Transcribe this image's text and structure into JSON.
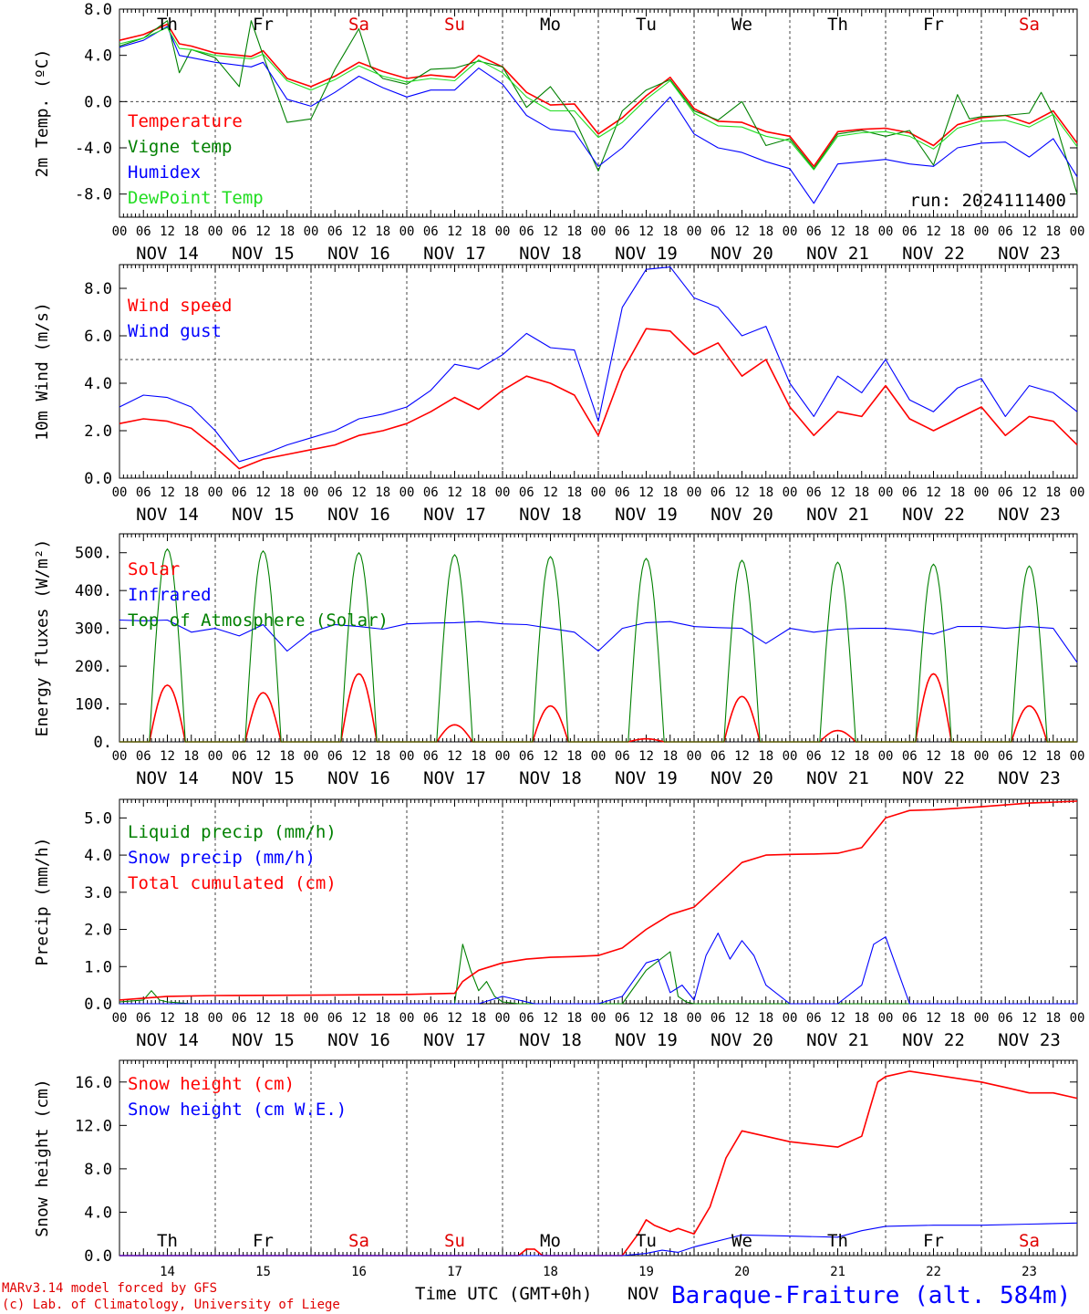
{
  "days": [
    "Th",
    "Fr",
    "Sa",
    "Su",
    "Mo",
    "Tu",
    "We",
    "Th",
    "Fr",
    "Sa"
  ],
  "day_colors": [
    "#000000",
    "#000000",
    "#e00000",
    "#e00000",
    "#000000",
    "#000000",
    "#000000",
    "#000000",
    "#000000",
    "#e00000"
  ],
  "dates": [
    "NOV 14",
    "NOV 15",
    "NOV 16",
    "NOV 17",
    "NOV 18",
    "NOV 19",
    "NOV 20",
    "NOV 21",
    "NOV 22",
    "NOV 23"
  ],
  "hour_labels": [
    "00",
    "06",
    "12",
    "18"
  ],
  "hour_end": "00",
  "bottom_day_numbers": [
    "14",
    "15",
    "16",
    "17",
    "18",
    "19",
    "20",
    "21",
    "22",
    "23"
  ],
  "bottom_month": "NOV",
  "time_label": "Time UTC (GMT+0h)",
  "station": "Baraque-Fraiture (alt. 584m)",
  "credits": [
    "MARv3.14 model forced by GFS",
    "(c) Lab. of Climatology, University of Liege"
  ],
  "run": "run: 2024111400",
  "colors": {
    "red": "#ff0000",
    "green": "#008000",
    "blue": "#0000ff",
    "lime": "#22dd22"
  },
  "chart_data": [
    {
      "type": "line",
      "ylabel": "2m Temp. (ºC)",
      "ylim": [
        -10.0,
        8.0
      ],
      "yticks": [
        8.0,
        4.0,
        0.0,
        -4.0,
        -8.0
      ],
      "ytick_labels": [
        "8.0",
        "4.0",
        "0.0",
        "-4.0",
        "-8.0"
      ],
      "zero_line": 0.0,
      "x_unit": "hours since NOV 14 00 UTC",
      "series": [
        {
          "name": "Temperature",
          "color": "#ff0000",
          "x": [
            0,
            6,
            12,
            15,
            18,
            24,
            33,
            36,
            42,
            48,
            54,
            60,
            66,
            72,
            78,
            84,
            90,
            96,
            102,
            108,
            114,
            120,
            126,
            132,
            138,
            144,
            150,
            156,
            162,
            168,
            174,
            180,
            186,
            192,
            198,
            204,
            210,
            216,
            222,
            228,
            234,
            240
          ],
          "y": [
            5.3,
            5.8,
            6.7,
            5.0,
            4.8,
            4.2,
            3.9,
            4.4,
            2.0,
            1.3,
            2.2,
            3.4,
            2.6,
            2.0,
            2.3,
            2.1,
            4.0,
            3.0,
            0.8,
            -0.3,
            -0.2,
            -2.8,
            -1.4,
            0.5,
            2.1,
            -0.6,
            -1.7,
            -1.8,
            -2.6,
            -3.0,
            -5.6,
            -2.6,
            -2.4,
            -2.3,
            -2.7,
            -3.8,
            -2.0,
            -1.4,
            -1.2,
            -1.9,
            -0.8,
            -3.6
          ]
        },
        {
          "name": "Vigne temp",
          "color": "#008000",
          "x": [
            0,
            6,
            12,
            15,
            18,
            24,
            30,
            33,
            36,
            42,
            48,
            54,
            60,
            63,
            66,
            72,
            78,
            84,
            90,
            96,
            102,
            108,
            114,
            120,
            126,
            132,
            138,
            144,
            150,
            156,
            162,
            168,
            174,
            180,
            186,
            192,
            198,
            204,
            210,
            213,
            216,
            222,
            228,
            231,
            234,
            240
          ],
          "y": [
            4.8,
            5.5,
            7.0,
            2.5,
            4.5,
            3.8,
            1.3,
            7.0,
            4.0,
            -1.8,
            -1.5,
            2.8,
            6.3,
            3.0,
            2.0,
            1.5,
            2.8,
            2.9,
            3.5,
            3.0,
            -0.5,
            1.3,
            -1.5,
            -6.0,
            -0.8,
            1.0,
            1.9,
            -0.8,
            -1.6,
            0.0,
            -3.8,
            -3.2,
            -5.8,
            -2.8,
            -2.5,
            -3.0,
            -2.5,
            -5.5,
            0.6,
            -1.5,
            -1.3,
            -1.2,
            -1.0,
            0.8,
            -1.2,
            -8.0
          ]
        },
        {
          "name": "Humidex",
          "color": "#0000ff",
          "x": [
            0,
            6,
            12,
            15,
            18,
            24,
            33,
            36,
            42,
            48,
            54,
            60,
            66,
            72,
            78,
            84,
            90,
            96,
            102,
            108,
            114,
            120,
            126,
            132,
            138,
            144,
            150,
            156,
            162,
            168,
            174,
            180,
            186,
            192,
            198,
            204,
            210,
            216,
            222,
            228,
            234,
            240
          ],
          "y": [
            4.7,
            5.3,
            6.5,
            4.0,
            3.8,
            3.4,
            3.0,
            3.4,
            0.2,
            -0.4,
            0.8,
            2.2,
            1.2,
            0.4,
            1.0,
            1.0,
            2.9,
            1.5,
            -1.2,
            -2.4,
            -2.6,
            -5.6,
            -4.0,
            -1.8,
            0.4,
            -2.8,
            -4.0,
            -4.4,
            -5.2,
            -5.8,
            -8.8,
            -5.4,
            -5.2,
            -5.0,
            -5.4,
            -5.6,
            -4.0,
            -3.6,
            -3.5,
            -4.8,
            -3.2,
            -6.5
          ]
        },
        {
          "name": "DewPoint Temp",
          "color": "#22dd22",
          "x": [
            0,
            6,
            12,
            15,
            18,
            24,
            33,
            36,
            42,
            48,
            54,
            60,
            66,
            72,
            78,
            84,
            90,
            96,
            102,
            108,
            114,
            120,
            126,
            132,
            138,
            144,
            150,
            156,
            162,
            168,
            174,
            180,
            186,
            192,
            198,
            204,
            210,
            216,
            222,
            228,
            234,
            240
          ],
          "y": [
            5.0,
            5.5,
            6.4,
            4.6,
            4.5,
            4.0,
            3.7,
            4.1,
            1.8,
            1.0,
            1.9,
            3.1,
            2.2,
            1.7,
            2.0,
            1.8,
            3.6,
            2.5,
            0.4,
            -0.8,
            -0.8,
            -3.1,
            -1.8,
            0.2,
            1.8,
            -1.0,
            -2.1,
            -2.2,
            -3.0,
            -3.4,
            -5.9,
            -3.0,
            -2.7,
            -2.6,
            -3.0,
            -4.1,
            -2.3,
            -1.7,
            -1.6,
            -2.2,
            -1.1,
            -3.9
          ]
        }
      ]
    },
    {
      "type": "line",
      "ylabel": "10m Wind (m/s)",
      "ylim": [
        0.0,
        9.0
      ],
      "yticks": [
        0.0,
        2.0,
        4.0,
        6.0,
        8.0
      ],
      "ytick_labels": [
        "0.0",
        "2.0",
        "4.0",
        "6.0",
        "8.0"
      ],
      "zero_line": 5.0,
      "x_unit": "hours since NOV 14 00 UTC",
      "series": [
        {
          "name": "Wind speed",
          "color": "#ff0000",
          "x": [
            0,
            6,
            12,
            18,
            24,
            30,
            36,
            42,
            48,
            54,
            60,
            66,
            72,
            78,
            84,
            90,
            96,
            102,
            108,
            114,
            120,
            126,
            132,
            138,
            144,
            150,
            156,
            162,
            168,
            174,
            180,
            186,
            192,
            198,
            204,
            210,
            216,
            222,
            228,
            234,
            240
          ],
          "y": [
            2.3,
            2.5,
            2.4,
            2.1,
            1.3,
            0.4,
            0.8,
            1.0,
            1.2,
            1.4,
            1.8,
            2.0,
            2.3,
            2.8,
            3.4,
            2.9,
            3.7,
            4.3,
            4.0,
            3.5,
            1.8,
            4.5,
            6.3,
            6.2,
            5.2,
            5.7,
            4.3,
            5.0,
            3.0,
            1.8,
            2.8,
            2.6,
            3.9,
            2.5,
            2.0,
            2.5,
            3.0,
            1.8,
            2.6,
            2.4,
            1.4
          ]
        },
        {
          "name": "Wind gust",
          "color": "#0000ff",
          "x": [
            0,
            6,
            12,
            18,
            24,
            30,
            36,
            42,
            48,
            54,
            60,
            66,
            72,
            78,
            84,
            90,
            96,
            102,
            108,
            114,
            120,
            126,
            132,
            138,
            144,
            150,
            156,
            162,
            168,
            174,
            180,
            186,
            192,
            198,
            204,
            210,
            216,
            222,
            228,
            234,
            240
          ],
          "y": [
            3.0,
            3.5,
            3.4,
            3.0,
            2.0,
            0.7,
            1.0,
            1.4,
            1.7,
            2.0,
            2.5,
            2.7,
            3.0,
            3.7,
            4.8,
            4.6,
            5.2,
            6.1,
            5.5,
            5.4,
            2.4,
            7.2,
            8.8,
            8.9,
            7.6,
            7.2,
            6.0,
            6.4,
            4.0,
            2.6,
            4.3,
            3.6,
            5.0,
            3.3,
            2.8,
            3.8,
            4.2,
            2.6,
            3.9,
            3.6,
            2.8
          ]
        }
      ]
    },
    {
      "type": "line",
      "ylabel": "Energy fluxes (W/m²)",
      "ylim": [
        0.0,
        550.0
      ],
      "yticks": [
        0.0,
        100.0,
        200.0,
        300.0,
        400.0,
        500.0
      ],
      "ytick_labels": [
        "0.",
        "100.",
        "200.",
        "300.",
        "400.",
        "500."
      ],
      "zero_line": null,
      "x_unit": "hours since NOV 14 00 UTC",
      "series": [
        {
          "name": "Solar",
          "color": "#ff0000",
          "peaks": [
            150,
            130,
            180,
            45,
            95,
            8,
            120,
            30,
            180,
            95
          ]
        },
        {
          "name": "Infrared",
          "color": "#0000ff",
          "x": [
            0,
            6,
            12,
            18,
            24,
            30,
            36,
            42,
            48,
            54,
            60,
            66,
            72,
            78,
            84,
            90,
            96,
            102,
            108,
            114,
            120,
            126,
            132,
            138,
            144,
            150,
            156,
            162,
            168,
            174,
            180,
            186,
            192,
            198,
            204,
            210,
            216,
            222,
            228,
            234,
            240
          ],
          "y": [
            322,
            320,
            322,
            290,
            300,
            280,
            310,
            240,
            290,
            310,
            305,
            298,
            312,
            314,
            315,
            318,
            312,
            310,
            300,
            290,
            240,
            300,
            315,
            318,
            305,
            302,
            300,
            260,
            300,
            290,
            298,
            300,
            300,
            295,
            285,
            305,
            305,
            300,
            305,
            300,
            210
          ]
        },
        {
          "name": "Top of Atmosphere (Solar)",
          "color": "#008000",
          "peaks": [
            510,
            505,
            500,
            495,
            490,
            485,
            480,
            475,
            470,
            465
          ]
        }
      ]
    },
    {
      "type": "line",
      "ylabel": "Precip (mm/h)",
      "ylim": [
        0.0,
        5.5
      ],
      "yticks": [
        0.0,
        1.0,
        2.0,
        3.0,
        4.0,
        5.0
      ],
      "ytick_labels": [
        "0.0",
        "1.0",
        "2.0",
        "3.0",
        "4.0",
        "5.0"
      ],
      "zero_line": null,
      "x_unit": "hours since NOV 14 00 UTC",
      "series": [
        {
          "name": "Liquid precip (mm/h)",
          "color": "#008000",
          "x": [
            0,
            6,
            8,
            10,
            12,
            18,
            84,
            86,
            88,
            90,
            92,
            94,
            96,
            100,
            104,
            108,
            126,
            132,
            138,
            140,
            142,
            144,
            240
          ],
          "y": [
            0.05,
            0.1,
            0.35,
            0.1,
            0.05,
            0.0,
            0.0,
            1.6,
            0.9,
            0.35,
            0.6,
            0.2,
            0.05,
            0.0,
            0.0,
            0.0,
            0.0,
            0.9,
            1.4,
            0.2,
            0.05,
            0.0,
            0.0
          ]
        },
        {
          "name": "Snow precip (mm/h)",
          "color": "#0000ff",
          "x": [
            0,
            90,
            96,
            100,
            104,
            120,
            126,
            132,
            135,
            138,
            141,
            144,
            147,
            150,
            153,
            156,
            159,
            162,
            168,
            180,
            186,
            189,
            192,
            195,
            198,
            240
          ],
          "y": [
            0.0,
            0.0,
            0.2,
            0.1,
            0.0,
            0.0,
            0.2,
            1.1,
            1.2,
            0.3,
            0.5,
            0.1,
            1.3,
            1.9,
            1.2,
            1.7,
            1.3,
            0.5,
            0.0,
            0.0,
            0.5,
            1.6,
            1.8,
            0.9,
            0.0,
            0.0
          ]
        },
        {
          "name": "Total cumulated (cm)",
          "color": "#ff0000",
          "x": [
            0,
            12,
            24,
            48,
            72,
            84,
            86,
            90,
            96,
            102,
            108,
            114,
            120,
            126,
            132,
            138,
            144,
            150,
            156,
            162,
            168,
            174,
            180,
            186,
            192,
            198,
            204,
            216,
            228,
            240
          ],
          "y": [
            0.1,
            0.2,
            0.22,
            0.23,
            0.25,
            0.28,
            0.6,
            0.9,
            1.1,
            1.2,
            1.25,
            1.27,
            1.3,
            1.5,
            2.0,
            2.4,
            2.6,
            3.2,
            3.8,
            4.0,
            4.02,
            4.03,
            4.05,
            4.2,
            5.0,
            5.2,
            5.22,
            5.3,
            5.4,
            5.45
          ]
        }
      ]
    },
    {
      "type": "line",
      "ylabel": "Snow height (cm)",
      "ylim": [
        0.0,
        18.0
      ],
      "yticks": [
        0.0,
        4.0,
        8.0,
        12.0,
        16.0
      ],
      "ytick_labels": [
        "0.0",
        "4.0",
        "8.0",
        "12.0",
        "16.0"
      ],
      "zero_line": null,
      "x_unit": "hours since NOV 14 00 UTC",
      "series": [
        {
          "name": "Snow height (cm)",
          "color": "#ff0000",
          "x": [
            0,
            100,
            102,
            104,
            106,
            108,
            126,
            130,
            132,
            134,
            138,
            140,
            144,
            148,
            152,
            156,
            168,
            180,
            186,
            188,
            190,
            192,
            198,
            216,
            222,
            228,
            234,
            240
          ],
          "y": [
            0.0,
            0.0,
            0.6,
            0.6,
            0.0,
            0.0,
            0.0,
            2.0,
            3.3,
            2.8,
            2.2,
            2.5,
            2.0,
            4.5,
            9.0,
            11.5,
            10.5,
            10.0,
            11.0,
            13.5,
            16.0,
            16.5,
            17.0,
            16.0,
            15.5,
            15.0,
            15.0,
            14.5
          ]
        },
        {
          "name": "Snow height (cm W.E.)",
          "color": "#0000ff",
          "x": [
            0,
            126,
            132,
            136,
            140,
            144,
            156,
            168,
            180,
            186,
            192,
            204,
            216,
            228,
            240
          ],
          "y": [
            0.0,
            0.0,
            0.2,
            0.5,
            0.3,
            0.8,
            1.9,
            1.8,
            1.7,
            2.3,
            2.7,
            2.8,
            2.8,
            2.9,
            3.0
          ]
        }
      ]
    }
  ]
}
